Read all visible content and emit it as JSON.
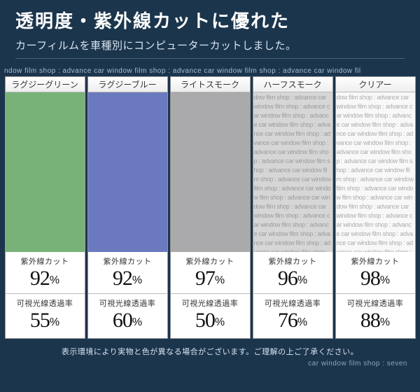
{
  "header": {
    "title": "透明度・紫外線カットに優れた",
    "subtitle": "カーフィルムを車種別にコンピューターカットしました。"
  },
  "watermark_text": "ndow film shop : advance car window film shop : advance car window film shop : advance car window fil",
  "swatch_watermark_unit": "dow film shop : advance car win",
  "labels": {
    "uv": "紫外線カット",
    "vlt": "可視光線透過率",
    "pct": "%"
  },
  "disclaimer": "表示環境により実物と色が異なる場合がございます。ご理解の上ご了承ください。",
  "footer": "car window film shop : seven",
  "cards": [
    {
      "name": "ラグジーグリーン",
      "tint": "rgba(58,142,58,0.68)",
      "text_mode": "dark",
      "uv": "92",
      "vlt": "55"
    },
    {
      "name": "ラグジーブルー",
      "tint": "rgba(44,64,162,0.70)",
      "text_mode": "dark",
      "uv": "92",
      "vlt": "60"
    },
    {
      "name": "ライトスモーク",
      "tint": "rgba(118,118,122,0.62)",
      "text_mode": "dark",
      "uv": "97",
      "vlt": "50"
    },
    {
      "name": "ハーフスモーク",
      "tint": "rgba(170,170,172,0.48)",
      "text_mode": "light",
      "uv": "96",
      "vlt": "76"
    },
    {
      "name": "クリアー",
      "tint": "rgba(232,232,232,0.32)",
      "text_mode": "light",
      "uv": "98",
      "vlt": "88"
    }
  ]
}
